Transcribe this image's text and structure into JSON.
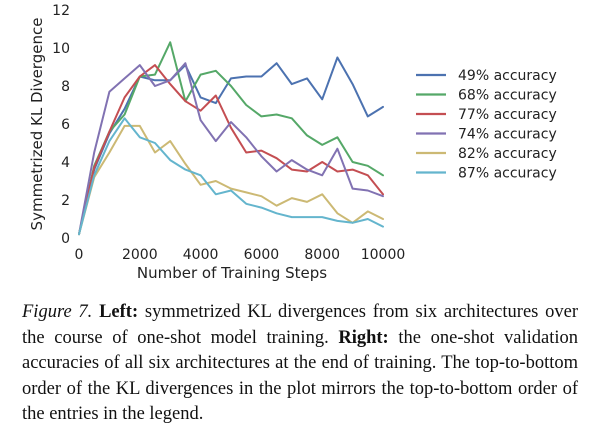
{
  "chart_data": {
    "type": "line",
    "xlabel": "Number of Training Steps",
    "ylabel": "Symmetrized KL Divergence",
    "xlim": [
      0,
      10000
    ],
    "ylim": [
      0,
      12
    ],
    "x_ticks": [
      "0",
      "2000",
      "4000",
      "6000",
      "8000",
      "10000"
    ],
    "y_ticks": [
      "0",
      "2",
      "4",
      "6",
      "8",
      "10",
      "12"
    ],
    "grid": false,
    "legend_position": "right",
    "x": [
      0,
      500,
      1000,
      1500,
      2000,
      2500,
      3000,
      3500,
      4000,
      4500,
      5000,
      5500,
      6000,
      6500,
      7000,
      7500,
      8000,
      8500,
      9000,
      9500,
      10000
    ],
    "series": [
      {
        "name": "49% accuracy",
        "color": "#4c72b0",
        "values": [
          0.2,
          3.6,
          5.5,
          6.8,
          8.5,
          8.3,
          8.3,
          9.1,
          7.4,
          7.1,
          8.4,
          8.5,
          8.5,
          9.2,
          8.1,
          8.4,
          7.3,
          9.5,
          8.1,
          6.4,
          6.9
        ]
      },
      {
        "name": "68% accuracy",
        "color": "#55a868",
        "values": [
          0.2,
          3.8,
          5.6,
          6.5,
          8.5,
          8.6,
          10.3,
          7.2,
          8.6,
          8.8,
          8.0,
          7.0,
          6.4,
          6.5,
          6.3,
          5.4,
          4.9,
          5.3,
          4.0,
          3.8,
          3.3
        ]
      },
      {
        "name": "77% accuracy",
        "color": "#c44e52",
        "values": [
          0.2,
          3.7,
          5.6,
          7.4,
          8.5,
          9.1,
          8.1,
          7.2,
          6.7,
          7.5,
          5.8,
          4.5,
          4.6,
          4.2,
          3.6,
          3.5,
          4.0,
          3.5,
          3.6,
          3.3,
          2.3
        ]
      },
      {
        "name": "74% accuracy",
        "color": "#8172b2",
        "values": [
          0.2,
          4.5,
          7.7,
          8.4,
          9.1,
          8.0,
          8.3,
          9.2,
          6.2,
          5.1,
          6.1,
          5.3,
          4.3,
          3.5,
          4.1,
          3.6,
          3.3,
          4.7,
          2.6,
          2.5,
          2.2
        ]
      },
      {
        "name": "82% accuracy",
        "color": "#ccb974",
        "values": [
          0.2,
          3.2,
          4.5,
          5.9,
          5.9,
          4.5,
          5.1,
          3.9,
          2.8,
          3.0,
          2.6,
          2.4,
          2.2,
          1.7,
          2.1,
          1.9,
          2.3,
          1.3,
          0.8,
          1.4,
          1.0
        ]
      },
      {
        "name": "87% accuracy",
        "color": "#64b5cd",
        "values": [
          0.2,
          3.3,
          5.1,
          6.3,
          5.3,
          5.0,
          4.1,
          3.6,
          3.3,
          2.3,
          2.5,
          1.8,
          1.6,
          1.3,
          1.1,
          1.1,
          1.1,
          0.9,
          0.8,
          1.0,
          0.6
        ]
      }
    ]
  },
  "caption": {
    "figure_label": "Figure 7.",
    "left_label": "Left:",
    "left_text": " symmetrized KL divergences from six architectures over the course of one-shot model training. ",
    "right_label": "Right:",
    "right_text": " the one-shot validation accuracies of all six architectures at the end of training. The top-to-bottom order of the KL divergences in the plot mirrors the top-to-bottom order of the entries in the legend."
  }
}
